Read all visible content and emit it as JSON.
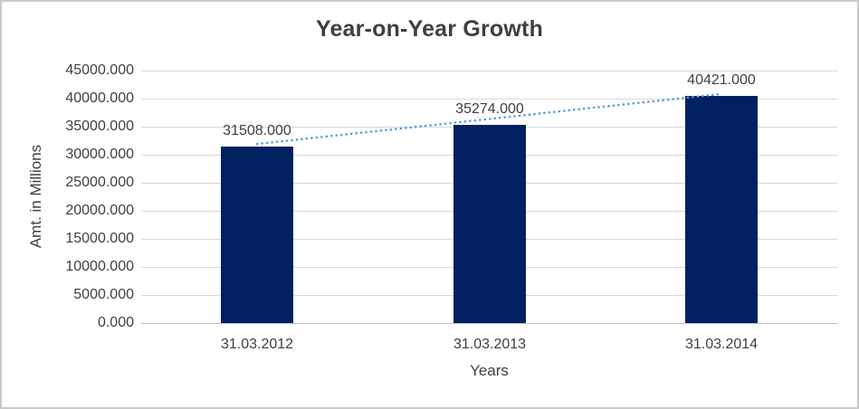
{
  "window": {
    "background": "#FFFFFF",
    "border_color": "#C9C9C9"
  },
  "chart_data": {
    "type": "bar",
    "title": "Year-on-Year Growth",
    "xlabel": "Years",
    "ylabel": "Amt. in Millions",
    "categories": [
      "31.03.2012",
      "31.03.2013",
      "31.03.2014"
    ],
    "values": [
      31508,
      35274,
      40421
    ],
    "value_labels": [
      "31508.000",
      "35274.000",
      "40421.000"
    ],
    "ylim": [
      0,
      45000
    ],
    "y_tick_step": 5000,
    "y_tick_labels": [
      "0.000",
      "5000.000",
      "10000.000",
      "15000.000",
      "20000.000",
      "25000.000",
      "30000.000",
      "35000.000",
      "40000.000",
      "45000.000"
    ],
    "grid": "horizontal",
    "legend": "none",
    "trendline": {
      "type": "linear",
      "style": "dotted"
    },
    "colors": {
      "bar": "#002060",
      "trendline": "#5B9BD5",
      "gridline": "#D9D9D9",
      "axis_line": "#BFBFBF",
      "text": "#404040",
      "title": "#3F3F3F"
    }
  }
}
